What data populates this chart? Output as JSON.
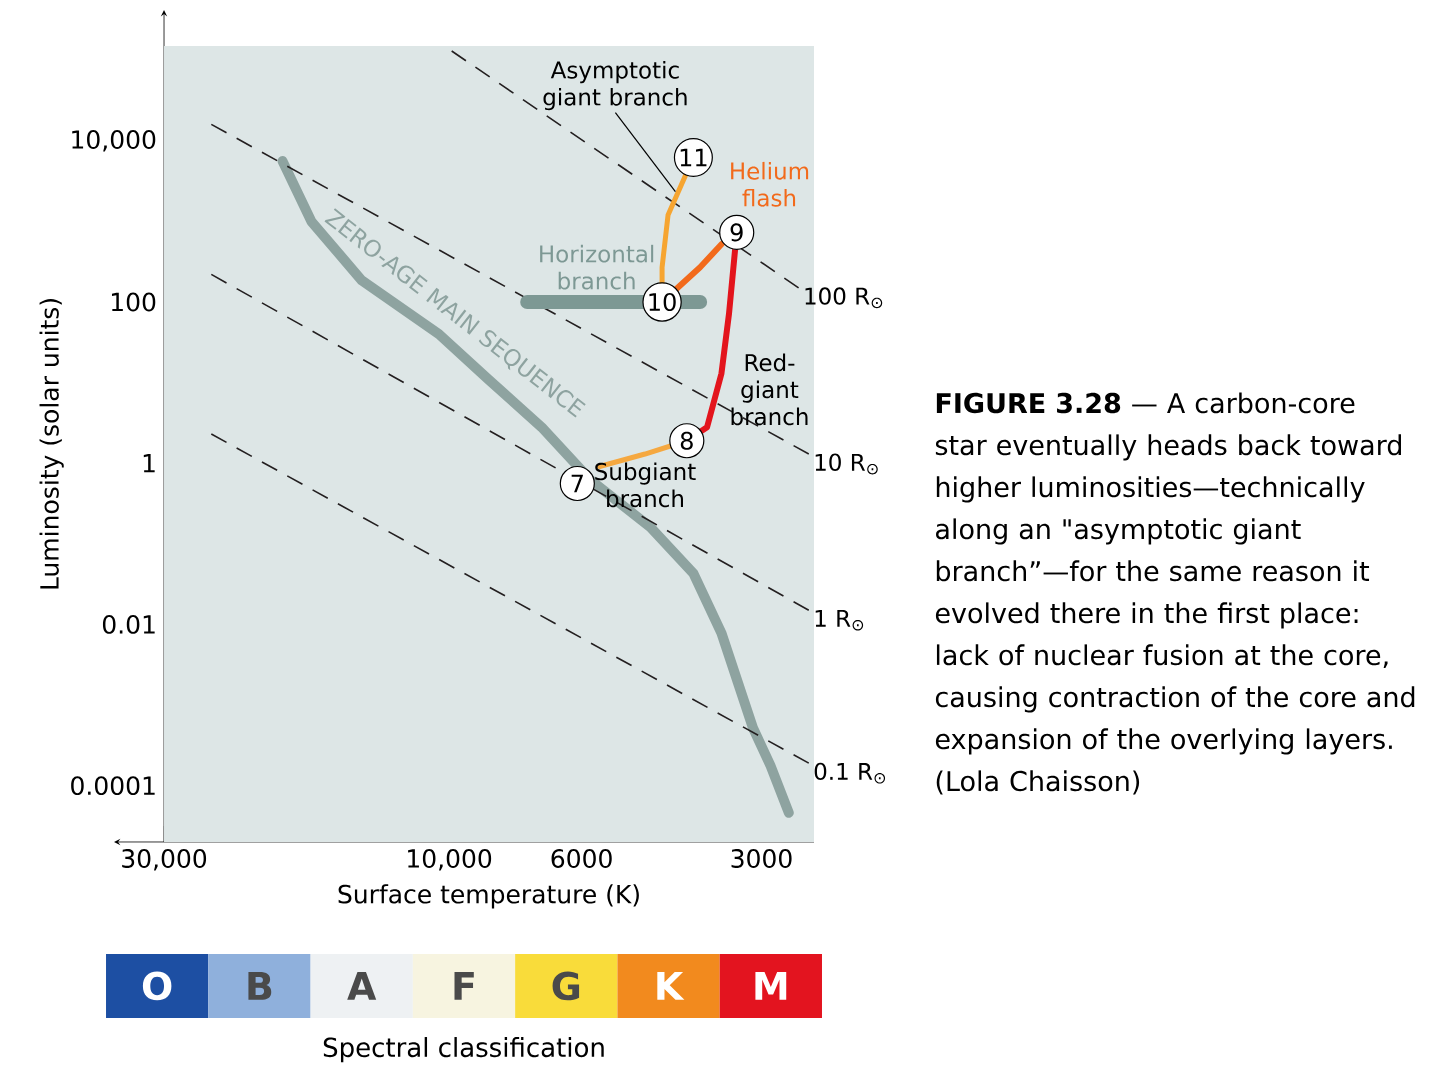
{
  "chart_data": [
    {
      "type": "line",
      "xlabel": "Surface temperature (K)",
      "ylabel": "Luminosity (solar units)",
      "log": "xy",
      "line_style": "solid",
      "xlim": [
        30000,
        2450
      ],
      "ylim": [
        2e-05,
        150000
      ],
      "xticks": [
        {
          "value": 30000,
          "label": "30,000"
        },
        {
          "value": 10000,
          "label": "10,000"
        },
        6000,
        3000
      ],
      "yticks": [
        0.0001,
        0.01,
        1,
        100,
        {
          "value": 10000,
          "label": "10,000"
        }
      ],
      "series": [
        {
          "name": "ZERO-AGE MAIN SEQUENCE",
          "color": "#8ea3a0",
          "x": [
            19000,
            17000,
            14000,
            10400,
            8600,
            7000,
            5800,
            4600,
            3900,
            3500,
            3100,
            2900,
            2700
          ],
          "values": [
            5600,
            1000,
            185,
            40,
            11,
            2.8,
            0.62,
            0.16,
            0.043,
            0.0078,
            0.00052,
            0.00018,
            4.6e-05
          ]
        },
        {
          "name": "100 R$_{⊙}$",
          "color": "#231f20",
          "line_style": "dashed",
          "x": [
            9900,
            2600
          ],
          "values": [
            130000,
            150
          ]
        },
        {
          "name": "10 R$_{⊙}$",
          "color": "#231f20",
          "line_style": "dashed",
          "x": [
            25000,
            2500
          ],
          "values": [
            16000,
            1.3
          ]
        },
        {
          "name": "1 R$_{⊙}$",
          "color": "#231f20",
          "line_style": "dashed",
          "x": [
            25000,
            2500
          ],
          "values": [
            220,
            0.015
          ]
        },
        {
          "name": "0.1 R$_{⊙}$",
          "color": "#231f20",
          "line_style": "dashed",
          "x": [
            25000,
            2500
          ],
          "values": [
            2.3,
            0.00019
          ]
        },
        {
          "name": "Horizontal branch",
          "color": "#7d9894",
          "x": [
            7400,
            3800
          ],
          "values": [
            100,
            100
          ]
        },
        {
          "name": "Subgiant branch",
          "color": "#f5a840",
          "x": [
            5600,
            4700,
            4000
          ],
          "values": [
            0.91,
            1.3,
            1.9
          ]
        },
        {
          "name": "Red-giant branch",
          "color": "#e3141c",
          "x": [
            4000,
            3700,
            3500,
            3400,
            3300
          ],
          "values": [
            1.9,
            2.8,
            13,
            71,
            730
          ]
        },
        {
          "name": "Helium flash",
          "color": "#f26a1b",
          "x": [
            3500,
            3800,
            4400
          ],
          "values": [
            520,
            270,
            100
          ]
        },
        {
          "name": "Asymptotic giant branch",
          "color": "#f6a531",
          "x": [
            4400,
            4400,
            4300,
            3900
          ],
          "values": [
            165,
            270,
            1200,
            6200
          ]
        }
      ],
      "annotations": [
        {
          "text": "7",
          "x": 6100,
          "y": 0.56
        },
        {
          "text": "8",
          "x": 4000,
          "y": 1.9
        },
        {
          "text": "9",
          "x": 3300,
          "y": 730
        },
        {
          "text": "10",
          "x": 4400,
          "y": 100
        },
        {
          "text": "11",
          "x": 3900,
          "y": 6200
        },
        "**FIGURE 3.28** — A carbon-core star eventually heads back toward higher luminosities—technically along an \"asymptotic giant branch”—for the same reason it evolved there in the first place: lack of nuclear fusion at the core, causing contraction of the core and expansion of the overlying layers. (Lola Chaisson)"
      ]
    },
    {
      "type": "other",
      "categories": [
        "O",
        "B",
        "A",
        "F",
        "G",
        "K",
        "M"
      ],
      "colors": [
        "#1d4fa3",
        "#8fb0dc",
        "#eef1f3",
        "#f7f4e0",
        "#f9dc3a",
        "#f28a1e",
        "#e3141f"
      ],
      "xlabel": "Spectral classification"
    }
  ]
}
